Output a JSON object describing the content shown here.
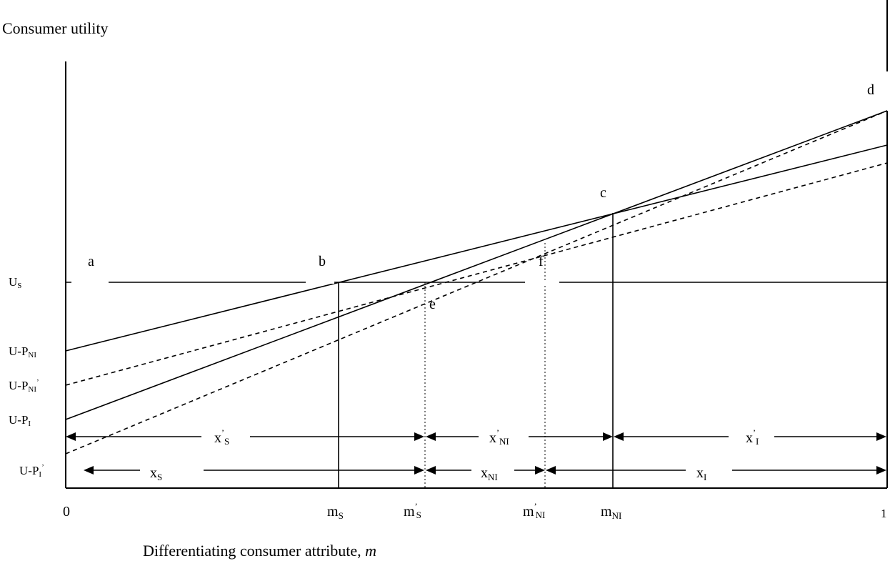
{
  "title": "Consumer utility",
  "xlabel_prefix": "Differentiating consumer attribute, ",
  "xlabel_var": "m",
  "y_labels": {
    "us": {
      "base": "U",
      "sub": "S"
    },
    "u_p_ni": {
      "base": "U-P",
      "sub": "NI"
    },
    "u_p_ni_prime": {
      "base": "U-P",
      "sub": "NI",
      "sup": "’"
    },
    "u_p_i": {
      "base": "U-P",
      "sub": "I"
    },
    "u_p_i_prime": {
      "base": "U-P",
      "sub": "I",
      "sup": "’"
    }
  },
  "x_labels": {
    "zero": "0",
    "one": "1",
    "ms": {
      "base": "m",
      "sub": "S"
    },
    "ms_prime": {
      "base": "m",
      "sup": "’",
      "sub": "S"
    },
    "mni_prime": {
      "base": "m",
      "sup": "’",
      "sub": "NI"
    },
    "mni": {
      "base": "m",
      "sub": "NI"
    }
  },
  "points": {
    "a": "a",
    "b": "b",
    "c": "c",
    "d": "d",
    "e": "e",
    "f": "f"
  },
  "segments_top": {
    "xs_prime": {
      "base": "x",
      "sup": "’",
      "sub": "S"
    },
    "xni_prime": {
      "base": "x",
      "sup": "’",
      "sub": "NI"
    },
    "xi_prime": {
      "base": "x",
      "sup": "’",
      "sub": "I"
    }
  },
  "segments_bottom": {
    "xs": {
      "base": "x",
      "sub": "S"
    },
    "xni": {
      "base": "x",
      "sub": "NI"
    },
    "xi": {
      "base": "x",
      "sub": "I"
    }
  }
}
